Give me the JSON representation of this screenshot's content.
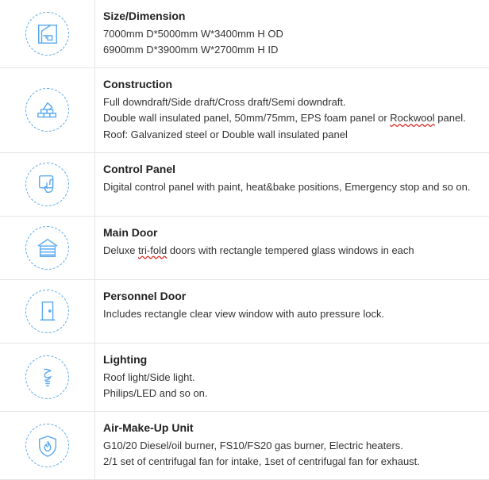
{
  "colors": {
    "iconStroke": "#5aa9f0",
    "border": "#e5e5e5",
    "titleText": "#222",
    "bodyText": "#333",
    "spellUnderline": "#d93025"
  },
  "specs": [
    {
      "icon": "dimension-icon",
      "title": "Size/Dimension",
      "lines": [
        {
          "text": "7000mm D*5000mm W*3400mm H  OD"
        },
        {
          "text": "6900mm D*3900mm W*2700mm H  ID"
        }
      ]
    },
    {
      "icon": "wall-icon",
      "title": "Construction",
      "lines": [
        {
          "text": "Full downdraft/Side draft/Cross draft/Semi downdraft."
        },
        {
          "parts": [
            {
              "text": "Double wall insulated panel, 50mm/75mm, EPS foam panel or "
            },
            {
              "text": "Rockwool",
              "spell": true
            },
            {
              "text": " panel."
            }
          ]
        },
        {
          "text": "Roof: Galvanized steel or Double wall insulated panel"
        }
      ]
    },
    {
      "icon": "touch-icon",
      "title": "Control Panel",
      "lines": [
        {
          "text": "Digital control panel with paint, heat&bake positions, Emergency stop and so on."
        }
      ]
    },
    {
      "icon": "garage-icon",
      "title": "Main Door",
      "lines": [
        {
          "parts": [
            {
              "text": "Deluxe "
            },
            {
              "text": "tri-fold",
              "spell": true
            },
            {
              "text": " doors with rectangle tempered glass windows in each"
            }
          ]
        }
      ]
    },
    {
      "icon": "door-icon",
      "title": "Personnel Door",
      "lines": [
        {
          "text": "Includes rectangle clear  view window with auto pressure lock."
        }
      ]
    },
    {
      "icon": "bulb-icon",
      "title": "Lighting",
      "lines": [
        {
          "text": "Roof light/Side light."
        },
        {
          "text": "Philips/LED and so on."
        }
      ]
    },
    {
      "icon": "flame-icon",
      "title": "Air-Make-Up Unit",
      "lines": [
        {
          "text": "G10/20 Diesel/oil burner, FS10/FS20 gas burner, Electric heaters."
        },
        {
          "text": "2/1 set of centrifugal fan for intake, 1set of centrifugal fan for exhaust."
        }
      ]
    }
  ]
}
